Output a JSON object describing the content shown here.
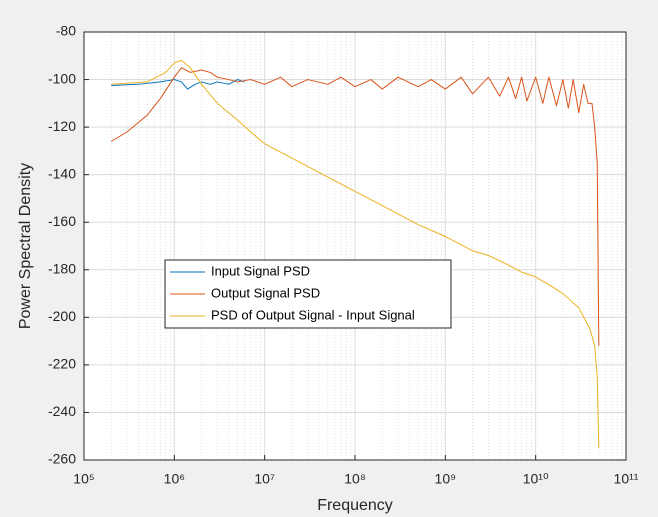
{
  "chart_data": {
    "type": "line",
    "x_label": "Frequency",
    "y_label": "Power Spectral Density",
    "x_scale": "log",
    "xlim": [
      100000,
      100000000000
    ],
    "xticks": [
      {
        "value": 100000,
        "label": "10⁵"
      },
      {
        "value": 1000000,
        "label": "10⁶"
      },
      {
        "value": 10000000,
        "label": "10⁷"
      },
      {
        "value": 100000000,
        "label": "10⁸"
      },
      {
        "value": 1000000000,
        "label": "10⁹"
      },
      {
        "value": 10000000000,
        "label": "10¹⁰"
      },
      {
        "value": 100000000000,
        "label": "10¹¹"
      }
    ],
    "ylim": [
      -260,
      -80
    ],
    "yticks": [
      -260,
      -240,
      -220,
      -200,
      -180,
      -160,
      -140,
      -120,
      -100,
      -80
    ],
    "grid": true,
    "minor_grid": true,
    "legend_location": "west",
    "series": [
      {
        "name": "Input Signal PSD",
        "color": "#0072bd",
        "x": [
          200000,
          400000,
          700000,
          1000000,
          1200000,
          1400000,
          1700000,
          2000000,
          2500000,
          3000000,
          4000000,
          5000000,
          6000000
        ],
        "values": [
          -102.5,
          -102,
          -101,
          -100,
          -101,
          -104,
          -102,
          -101,
          -102,
          -101,
          -102,
          -100,
          -101
        ]
      },
      {
        "name": "Output Signal PSD",
        "color": "#d95319",
        "x": [
          200000,
          300000,
          500000,
          700000,
          1000000,
          1200000,
          1500000,
          2000000,
          2500000,
          3000000,
          4000000,
          5000000,
          7000000,
          10000000,
          15000000,
          20000000,
          30000000,
          50000000,
          70000000,
          100000000,
          150000000,
          200000000,
          300000000,
          500000000,
          700000000,
          1000000000,
          1500000000,
          2000000000,
          3000000000,
          4000000000,
          5000000000,
          6000000000,
          7000000000,
          8000000000,
          10000000000,
          12000000000,
          14000000000,
          17000000000,
          20000000000,
          23000000000,
          26000000000,
          30000000000,
          34000000000,
          38000000000,
          42000000000,
          45000000000,
          48000000000,
          50000000000
        ],
        "values": [
          -126,
          -122,
          -115,
          -108,
          -99,
          -95,
          -97,
          -96,
          -97,
          -99,
          -100,
          -101,
          -100,
          -102,
          -99,
          -103,
          -100,
          -102,
          -99,
          -103,
          -100,
          -104,
          -99,
          -103,
          -100,
          -104,
          -99,
          -106,
          -99,
          -107,
          -99,
          -108,
          -99,
          -109,
          -99,
          -110,
          -99,
          -111,
          -100,
          -112,
          -100,
          -114,
          -102,
          -110,
          -110,
          -120,
          -135,
          -212
        ]
      },
      {
        "name": "PSD of Output Signal - Input Signal",
        "color": "#edb120",
        "x": [
          200000,
          500000,
          800000,
          1000000,
          1200000,
          1500000,
          2000000,
          3000000,
          5000000,
          7000000,
          10000000,
          20000000,
          50000000,
          100000000,
          200000000,
          500000000,
          1000000000,
          2000000000,
          3000000000,
          5000000000,
          7000000000,
          10000000000,
          15000000000,
          20000000000,
          30000000000,
          40000000000,
          45000000000,
          48000000000,
          50000000000
        ],
        "values": [
          -102,
          -101,
          -97,
          -93,
          -92,
          -95,
          -102,
          -110,
          -117,
          -122,
          -127,
          -133,
          -141,
          -147,
          -153,
          -161,
          -166,
          -172,
          -174,
          -178,
          -181,
          -183,
          -187,
          -190,
          -196,
          -205,
          -212,
          -225,
          -255
        ]
      }
    ]
  }
}
